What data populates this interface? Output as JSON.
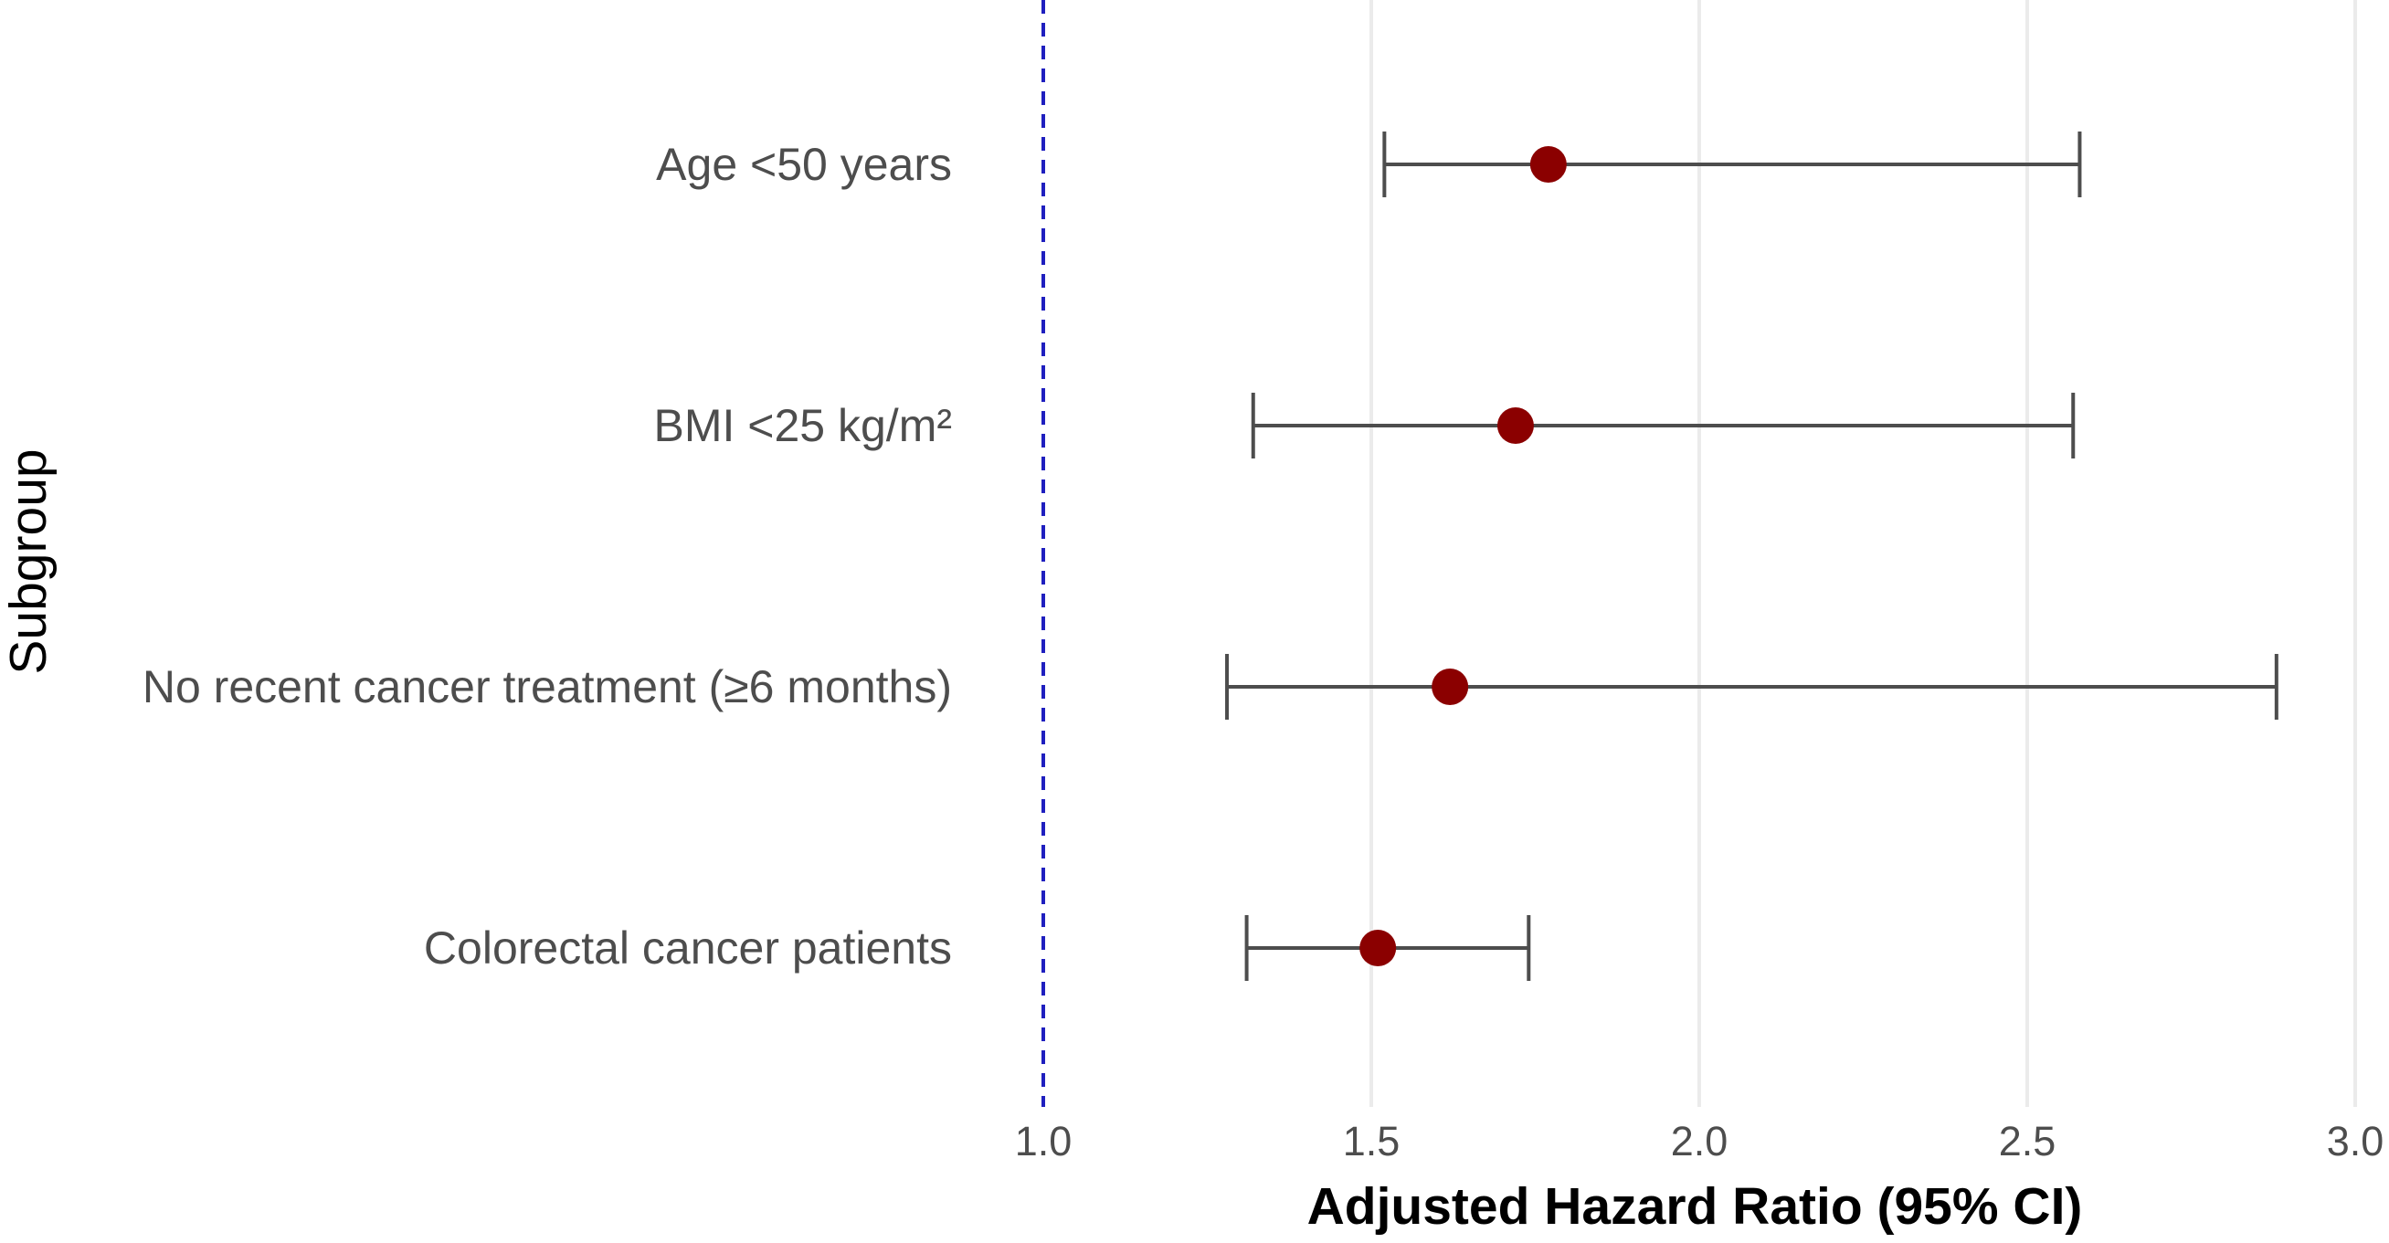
{
  "chart_data": {
    "type": "scatter",
    "subtype": "forest-plot",
    "title": "",
    "xlabel": "Adjusted Hazard Ratio (95% CI)",
    "ylabel": "Subgroup",
    "xlim": [
      1.0,
      3.0
    ],
    "xticks": [
      1.0,
      1.5,
      2.0,
      2.5,
      3.0
    ],
    "xtick_labels": [
      "1.0",
      "1.5",
      "2.0",
      "2.5",
      "3.0"
    ],
    "reference_line": {
      "x": 1.0,
      "style": "dashed",
      "color": "#1f1fbf"
    },
    "grid": "vertical-major",
    "colors": {
      "point": "#8b0000",
      "errorbar": "#4d4d4d",
      "grid": "#ebebeb"
    },
    "rows": [
      {
        "label": "Age <50 years",
        "hr": 1.77,
        "lower": 1.52,
        "upper": 2.58
      },
      {
        "label": "BMI <25 kg/m²",
        "hr": 1.72,
        "lower": 1.32,
        "upper": 2.57
      },
      {
        "label": "No recent cancer treatment (≥6 months)",
        "hr": 1.62,
        "lower": 1.28,
        "upper": 2.88
      },
      {
        "label": "Colorectal cancer patients",
        "hr": 1.51,
        "lower": 1.31,
        "upper": 1.74
      }
    ]
  }
}
